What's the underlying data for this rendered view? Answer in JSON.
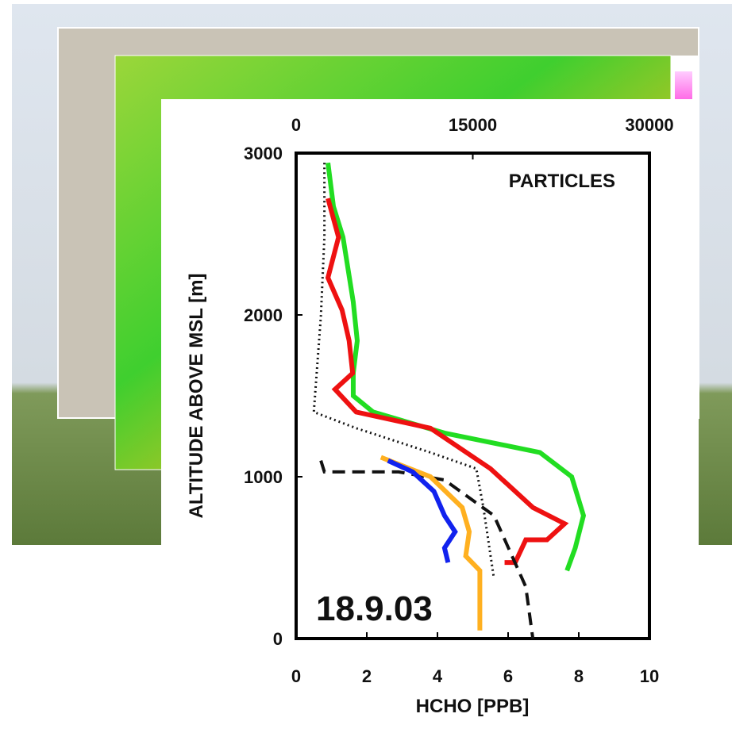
{
  "chart_data": {
    "type": "line",
    "xlabel": "HCHO [PPB]",
    "ylabel": "ALTITUDE ABOVE MSL [m]",
    "annotations": [
      "PARTICLES",
      "18.9.03"
    ],
    "xlim": [
      0,
      10
    ],
    "xticks": [
      0,
      2,
      4,
      6,
      8,
      10
    ],
    "x2lim": [
      0,
      30000
    ],
    "x2ticks": [
      0,
      15000,
      30000
    ],
    "ylim": [
      0,
      3000
    ],
    "yticks": [
      0,
      1000,
      2000,
      3000
    ],
    "series": [
      {
        "color": "#22dd22",
        "axis": "x2",
        "style": "solid",
        "x": [
          2700,
          3170,
          3980,
          4850,
          5190,
          4850,
          4850,
          6540,
          12600,
          20700,
          23400,
          24400,
          23700,
          23000
        ],
        "values": [
          2940,
          2670,
          2480,
          2080,
          1840,
          1640,
          1500,
          1400,
          1270,
          1150,
          1000,
          760,
          560,
          420
        ]
      },
      {
        "color": "#ee1111",
        "style": "solid",
        "x": [
          0.9,
          1.2,
          0.9,
          1.3,
          1.5,
          1.6,
          1.1,
          1.7,
          3.8,
          5.5,
          6.7,
          7.6,
          7.1,
          6.5,
          6.2,
          5.9
        ],
        "values": [
          2720,
          2480,
          2230,
          2030,
          1840,
          1640,
          1540,
          1400,
          1300,
          1050,
          810,
          710,
          610,
          610,
          470,
          470
        ]
      },
      {
        "color": "#111111",
        "style": "dotted",
        "x": [
          0.8,
          0.8,
          0.7,
          0.5,
          1.7,
          3.8,
          5.1,
          5.3,
          5.6
        ],
        "values": [
          2940,
          2480,
          1990,
          1400,
          1300,
          1150,
          1050,
          810,
          370
        ]
      },
      {
        "color": "#111111",
        "style": "dashed",
        "x": [
          0.7,
          0.8,
          2.9,
          4.2,
          5.6,
          6.5,
          6.7
        ],
        "values": [
          1100,
          1030,
          1030,
          980,
          760,
          320,
          0
        ]
      },
      {
        "color": "#ffb020",
        "style": "solid",
        "x": [
          2.4,
          3.8,
          4.7,
          4.9,
          4.8,
          5.2,
          5.2
        ],
        "values": [
          1120,
          1000,
          810,
          660,
          510,
          420,
          50
        ]
      },
      {
        "color": "#1122ee",
        "style": "solid",
        "x": [
          2.6,
          3.3,
          3.9,
          4.2,
          4.5,
          4.2,
          4.3
        ],
        "values": [
          1100,
          1030,
          910,
          760,
          660,
          560,
          470
        ]
      }
    ]
  }
}
